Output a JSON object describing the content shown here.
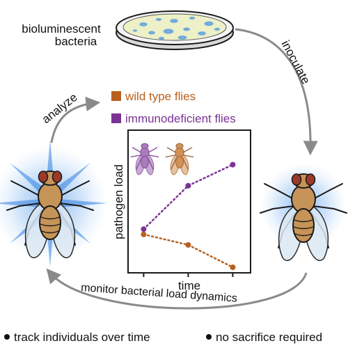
{
  "top_label": [
    "bioluminescent",
    "bacteria"
  ],
  "steps": {
    "inoculate": "inoculate",
    "analyze": "analyze",
    "monitor": "monitor bacterial load dynamics"
  },
  "legend": [
    {
      "label": "wild type flies",
      "color": "#b8601e"
    },
    {
      "label": "immunodeficient flies",
      "color": "#7b3294"
    }
  ],
  "chart_data": {
    "type": "line",
    "xlabel": "time",
    "ylabel": "pathogen load",
    "x": [
      1,
      2,
      3
    ],
    "xlim": [
      0.65,
      3.4
    ],
    "ylim": [
      0,
      1
    ],
    "series": [
      {
        "values": [
          0.25,
          0.17,
          0.0
        ],
        "color": "#b8601e"
      },
      {
        "values": [
          0.29,
          0.62,
          0.78
        ],
        "color": "#7b3294"
      }
    ]
  },
  "bullets": [
    "track individuals over time",
    "no sacrifice required"
  ],
  "colors": {
    "glow": "#2f7fe0",
    "arrow": "#8a8a8a",
    "dish_agar": "#eef0c8",
    "fly_body": "#c69358",
    "fly_eye": "#9b3a2a"
  }
}
